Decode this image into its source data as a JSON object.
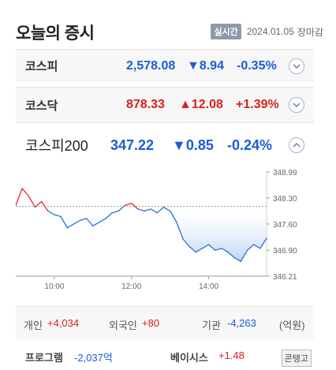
{
  "header": {
    "title": "오늘의 증시",
    "live_label": "실시간",
    "date": "2024.01.05",
    "status": "장마감"
  },
  "indices": [
    {
      "name": "코스피",
      "value": "2,578.08",
      "change": "▼8.94",
      "pct": "-0.35%",
      "direction": "down",
      "color": "#1a5dd6"
    },
    {
      "name": "코스닥",
      "value": "878.33",
      "change": "▲12.08",
      "pct": "+1.39%",
      "direction": "up",
      "color": "#d9211c"
    },
    {
      "name": "코스피200",
      "value": "347.22",
      "change": "▼0.85",
      "pct": "-0.24%",
      "direction": "down",
      "color": "#1a5dd6"
    }
  ],
  "chart_data": {
    "type": "line",
    "title": "",
    "xlabel": "",
    "ylabel": "",
    "x_ticks": [
      "10:00",
      "12:00",
      "14:00"
    ],
    "y_ticks": [
      "348.99",
      "348.30",
      "347.60",
      "346.90",
      "346.21"
    ],
    "ylim": [
      346.21,
      348.99
    ],
    "reference": 348.07,
    "colors": {
      "above": "#e8262d",
      "below": "#2f70e0",
      "fill_below": "#bcd3f5"
    },
    "x": [
      "09:00",
      "09:10",
      "09:20",
      "09:30",
      "09:40",
      "09:50",
      "10:00",
      "10:10",
      "10:20",
      "10:30",
      "10:40",
      "10:50",
      "11:00",
      "11:10",
      "11:20",
      "11:30",
      "11:40",
      "11:50",
      "12:00",
      "12:10",
      "12:20",
      "12:30",
      "12:40",
      "12:50",
      "13:00",
      "13:10",
      "13:20",
      "13:30",
      "13:40",
      "13:50",
      "14:00",
      "14:10",
      "14:20",
      "14:30",
      "14:40",
      "14:50",
      "15:00",
      "15:10",
      "15:20",
      "15:30"
    ],
    "values": [
      348.1,
      348.55,
      348.35,
      348.05,
      348.2,
      347.95,
      347.85,
      347.8,
      347.5,
      347.6,
      347.7,
      347.75,
      347.55,
      347.65,
      347.75,
      347.9,
      347.95,
      348.1,
      348.15,
      348.0,
      347.95,
      348.0,
      347.9,
      348.05,
      347.95,
      347.65,
      347.2,
      347.0,
      346.85,
      346.95,
      347.05,
      346.9,
      346.95,
      346.85,
      346.7,
      346.6,
      346.9,
      347.05,
      346.95,
      347.22
    ]
  },
  "investors": {
    "individual_label": "개인",
    "individual_value": "+4,034",
    "foreign_label": "외국인",
    "foreign_value": "+80",
    "institution_label": "기관",
    "institution_value": "-4,263",
    "unit": "(억원)"
  },
  "program": {
    "program_label": "프로그램",
    "program_value": "-2,037억",
    "basis_label": "베이시스",
    "basis_value": "+1.48",
    "contango_label": "콘탱고"
  }
}
